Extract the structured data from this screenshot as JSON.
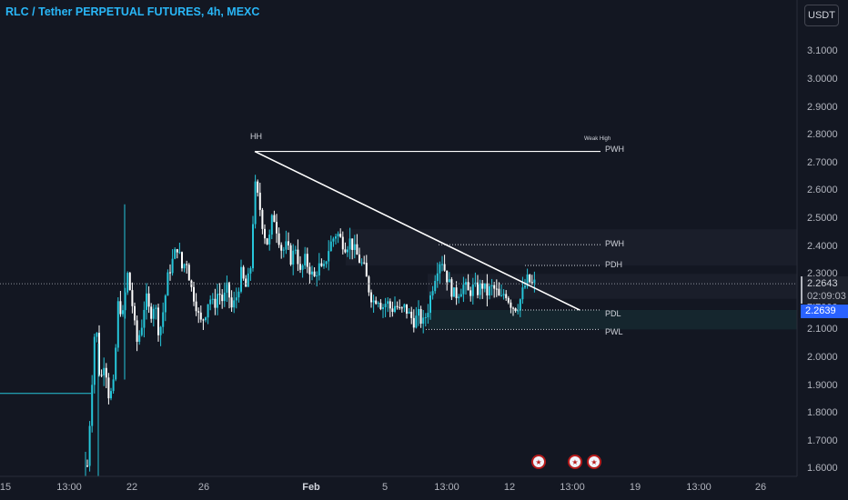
{
  "header": {
    "title": "RLC / Tether PERPETUAL FUTURES, 4h, MEXC"
  },
  "toolbar": {
    "currency_label": "USDT"
  },
  "price_axis": {
    "ticks": [
      "3.1000",
      "3.0000",
      "2.9000",
      "2.8000",
      "2.7000",
      "2.6000",
      "2.5000",
      "2.4000",
      "2.3000",
      "2.2000",
      "2.1000",
      "2.0000",
      "1.9000",
      "1.8000",
      "1.7000",
      "1.6000"
    ],
    "last_price": "2.2643",
    "countdown": "02:09:03",
    "bid_price": "2.2639"
  },
  "time_axis": {
    "labels": [
      {
        "text": "15",
        "bold": false
      },
      {
        "text": "13:00",
        "bold": false
      },
      {
        "text": "22",
        "bold": false
      },
      {
        "text": "26",
        "bold": false
      },
      {
        "text": "Feb",
        "bold": true
      },
      {
        "text": "5",
        "bold": false
      },
      {
        "text": "13:00",
        "bold": false
      },
      {
        "text": "12",
        "bold": false
      },
      {
        "text": "13:00",
        "bold": false
      },
      {
        "text": "19",
        "bold": false
      },
      {
        "text": "13:00",
        "bold": false
      },
      {
        "text": "26",
        "bold": false
      }
    ]
  },
  "annotations": {
    "hh": "HH",
    "weak_high": "Weak High",
    "pwh_top": "PWH",
    "pwh": "PWH",
    "pdh": "PDH",
    "pdl": "PDL",
    "pwl": "PWL"
  },
  "colors": {
    "up": "#26c6da",
    "down": "#ffffff",
    "background": "#131722",
    "accent": "#29b6f6",
    "bid": "#2962ff"
  },
  "chart_data": {
    "type": "candlestick",
    "title": "RLC / Tether PERPETUAL FUTURES, 4h, MEXC",
    "ylim": [
      1.57,
      3.18
    ],
    "y_ticks": [
      3.1,
      3.0,
      2.9,
      2.8,
      2.7,
      2.6,
      2.5,
      2.4,
      2.3,
      2.2,
      2.1,
      2.0,
      1.9,
      1.8,
      1.7,
      1.6
    ],
    "last_price": 2.2643,
    "bid_price": 2.2639,
    "levels": [
      {
        "label": "PWH",
        "price": 2.74
      },
      {
        "label": "PWH",
        "price": 2.405
      },
      {
        "label": "PDH",
        "price": 2.33
      },
      {
        "label": "PDL",
        "price": 2.17
      },
      {
        "label": "PWL",
        "price": 2.1
      }
    ],
    "close_path": [
      [
        0,
        1.48
      ],
      [
        95,
        1.55
      ],
      [
        100,
        1.85
      ],
      [
        105,
        2.15
      ],
      [
        110,
        1.9
      ],
      [
        115,
        2.0
      ],
      [
        120,
        1.85
      ],
      [
        125,
        1.9
      ],
      [
        130,
        2.2
      ],
      [
        135,
        2.15
      ],
      [
        140,
        2.3
      ],
      [
        145,
        2.2
      ],
      [
        150,
        2.05
      ],
      [
        155,
        2.1
      ],
      [
        160,
        2.22
      ],
      [
        165,
        2.15
      ],
      [
        170,
        2.2
      ],
      [
        175,
        2.08
      ],
      [
        180,
        2.18
      ],
      [
        185,
        2.3
      ],
      [
        190,
        2.35
      ],
      [
        195,
        2.4
      ],
      [
        200,
        2.32
      ],
      [
        205,
        2.35
      ],
      [
        210,
        2.25
      ],
      [
        215,
        2.2
      ],
      [
        220,
        2.12
      ],
      [
        225,
        2.15
      ],
      [
        230,
        2.22
      ],
      [
        235,
        2.18
      ],
      [
        240,
        2.24
      ],
      [
        245,
        2.2
      ],
      [
        250,
        2.25
      ],
      [
        255,
        2.17
      ],
      [
        260,
        2.22
      ],
      [
        265,
        2.3
      ],
      [
        270,
        2.25
      ],
      [
        275,
        2.3
      ],
      [
        280,
        2.62
      ],
      [
        285,
        2.55
      ],
      [
        290,
        2.45
      ],
      [
        295,
        2.4
      ],
      [
        300,
        2.52
      ],
      [
        305,
        2.45
      ],
      [
        310,
        2.38
      ],
      [
        315,
        2.4
      ],
      [
        320,
        2.35
      ],
      [
        325,
        2.4
      ],
      [
        330,
        2.3
      ],
      [
        335,
        2.35
      ],
      [
        340,
        2.32
      ],
      [
        345,
        2.28
      ],
      [
        350,
        2.33
      ],
      [
        355,
        2.3
      ],
      [
        360,
        2.38
      ],
      [
        365,
        2.42
      ],
      [
        370,
        2.45
      ],
      [
        375,
        2.42
      ],
      [
        380,
        2.4
      ],
      [
        385,
        2.42
      ],
      [
        390,
        2.38
      ],
      [
        395,
        2.35
      ],
      [
        400,
        2.32
      ],
      [
        405,
        2.25
      ],
      [
        410,
        2.2
      ],
      [
        415,
        2.22
      ],
      [
        420,
        2.18
      ],
      [
        425,
        2.2
      ],
      [
        430,
        2.17
      ],
      [
        435,
        2.19
      ],
      [
        440,
        2.16
      ],
      [
        445,
        2.18
      ],
      [
        450,
        2.15
      ],
      [
        455,
        2.13
      ],
      [
        460,
        2.15
      ],
      [
        465,
        2.12
      ],
      [
        470,
        2.17
      ],
      [
        475,
        2.25
      ],
      [
        480,
        2.32
      ],
      [
        485,
        2.36
      ],
      [
        490,
        2.3
      ],
      [
        495,
        2.25
      ],
      [
        500,
        2.22
      ],
      [
        505,
        2.24
      ],
      [
        510,
        2.26
      ],
      [
        515,
        2.23
      ],
      [
        520,
        2.25
      ],
      [
        525,
        2.24
      ],
      [
        530,
        2.26
      ],
      [
        535,
        2.23
      ],
      [
        540,
        2.25
      ],
      [
        545,
        2.24
      ],
      [
        550,
        2.2
      ],
      [
        555,
        2.24
      ],
      [
        560,
        2.2
      ],
      [
        565,
        2.18
      ],
      [
        570,
        2.19
      ],
      [
        575,
        2.24
      ],
      [
        580,
        2.28
      ],
      [
        585,
        2.26
      ],
      [
        590,
        2.27
      ]
    ],
    "trendline": [
      [
        280,
        2.74
      ],
      [
        637,
        2.17
      ]
    ]
  }
}
